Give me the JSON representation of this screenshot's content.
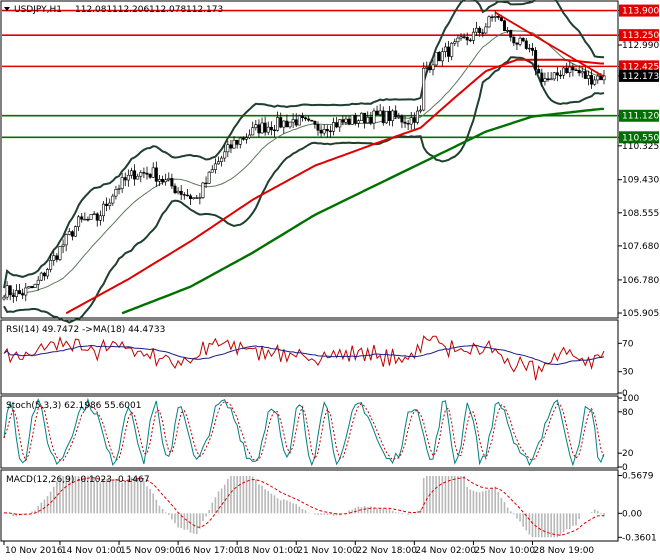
{
  "chart_data": {
    "type": "candlestick",
    "symbol": "USDJPY,H1",
    "ohlc_header": {
      "open": "112.081",
      "high": "112.206",
      "low": "112.078",
      "close": "112.173"
    },
    "main_panel": {
      "ylim": [
        105.8,
        114.1
      ],
      "y_ticks": [
        {
          "v": 113.9,
          "label": "113.900",
          "tag": "red"
        },
        {
          "v": 113.25,
          "label": "113.250",
          "tag": "red"
        },
        {
          "v": 112.99,
          "label": "112.990",
          "tag": ""
        },
        {
          "v": 112.425,
          "label": "112.425",
          "tag": "red"
        },
        {
          "v": 112.173,
          "label": "112.173",
          "tag": "black"
        },
        {
          "v": 111.12,
          "label": "111.120",
          "tag": "green"
        },
        {
          "v": 110.55,
          "label": "110.550",
          "tag": "green"
        },
        {
          "v": 110.325,
          "label": "110.325",
          "tag": ""
        },
        {
          "v": 109.43,
          "label": "109.430",
          "tag": ""
        },
        {
          "v": 108.555,
          "label": "108.555",
          "tag": ""
        },
        {
          "v": 107.68,
          "label": "107.680",
          "tag": ""
        },
        {
          "v": 106.78,
          "label": "106.780",
          "tag": ""
        },
        {
          "v": 105.905,
          "label": "105.905",
          "tag": ""
        }
      ],
      "horizontal_levels": [
        {
          "v": 113.9,
          "color": "#e00000"
        },
        {
          "v": 113.25,
          "color": "#e00000"
        },
        {
          "v": 112.425,
          "color": "#e00000"
        },
        {
          "v": 111.12,
          "color": "#007000"
        },
        {
          "v": 110.55,
          "color": "#007000"
        }
      ],
      "trendline": {
        "from_bar": 158,
        "from_v": 113.85,
        "to_bar": 193,
        "to_v": 112.15,
        "color": "#e00000"
      },
      "key_points": [
        [
          0,
          106.5
        ],
        [
          5,
          106.4
        ],
        [
          10,
          106.6
        ],
        [
          18,
          107.6
        ],
        [
          24,
          108.3
        ],
        [
          30,
          108.4
        ],
        [
          36,
          109.2
        ],
        [
          42,
          109.6
        ],
        [
          48,
          109.6
        ],
        [
          55,
          109.2
        ],
        [
          62,
          108.9
        ],
        [
          68,
          109.8
        ],
        [
          74,
          110.4
        ],
        [
          82,
          110.8
        ],
        [
          88,
          110.9
        ],
        [
          94,
          111.0
        ],
        [
          100,
          110.8
        ],
        [
          106,
          110.9
        ],
        [
          112,
          111.0
        ],
        [
          118,
          111.1
        ],
        [
          124,
          111.1
        ],
        [
          130,
          111.0
        ],
        [
          134,
          111.2
        ],
        [
          135,
          112.3
        ],
        [
          138,
          112.6
        ],
        [
          142,
          112.8
        ],
        [
          146,
          113.0
        ],
        [
          150,
          113.2
        ],
        [
          154,
          113.4
        ],
        [
          158,
          113.8
        ],
        [
          162,
          113.3
        ],
        [
          166,
          113.0
        ],
        [
          170,
          112.7
        ],
        [
          172,
          112.2
        ],
        [
          176,
          112.0
        ],
        [
          180,
          112.4
        ],
        [
          184,
          112.3
        ],
        [
          188,
          112.1
        ],
        [
          192,
          112.173
        ]
      ],
      "ma_red_points": [
        [
          20,
          105.9
        ],
        [
          40,
          106.8
        ],
        [
          60,
          107.8
        ],
        [
          80,
          108.9
        ],
        [
          100,
          109.8
        ],
        [
          120,
          110.4
        ],
        [
          134,
          110.8
        ],
        [
          145,
          111.6
        ],
        [
          155,
          112.3
        ],
        [
          165,
          112.6
        ],
        [
          180,
          112.6
        ],
        [
          192,
          112.5
        ]
      ],
      "ma_green_points": [
        [
          38,
          105.9
        ],
        [
          60,
          106.6
        ],
        [
          80,
          107.5
        ],
        [
          100,
          108.5
        ],
        [
          120,
          109.3
        ],
        [
          140,
          110.1
        ],
        [
          155,
          110.7
        ],
        [
          170,
          111.1
        ],
        [
          192,
          111.3
        ]
      ]
    },
    "rsi": {
      "label": "RSI(14) 49.7472 ->MA(18) 44.4733",
      "ylim": [
        0,
        100
      ],
      "ticks": [
        70,
        30,
        0
      ]
    },
    "stoch": {
      "label": "Stoch(5,3,3) 62.1986 55.6001",
      "ylim": [
        0,
        100
      ],
      "ticks": [
        100,
        80,
        20,
        0
      ]
    },
    "macd": {
      "label": "MACD(12,26,9) -0.1023 -0.1467",
      "ylim": [
        -0.4,
        0.62
      ],
      "ticks": [
        {
          "v": 0.5679,
          "label": "0.5679"
        },
        {
          "v": 0.0,
          "label": "0.00"
        },
        {
          "v": -0.3601,
          "label": "-0.3601"
        }
      ]
    },
    "x_ticks": [
      {
        "bar": 0,
        "label": "10 Nov 2016"
      },
      {
        "bar": 18,
        "label": "14 Nov 01:00"
      },
      {
        "bar": 37,
        "label": "15 Nov 09:00"
      },
      {
        "bar": 56,
        "label": "16 Nov 17:00"
      },
      {
        "bar": 75,
        "label": "18 Nov 01:00"
      },
      {
        "bar": 94,
        "label": "21 Nov 10:00"
      },
      {
        "bar": 113,
        "label": "22 Nov 18:00"
      },
      {
        "bar": 132,
        "label": "24 Nov 02:00"
      },
      {
        "bar": 151,
        "label": "25 Nov 10:00"
      },
      {
        "bar": 170,
        "label": "28 Nov 19:00"
      }
    ],
    "colors": {
      "candle": "#000000",
      "bb": "#1f3f2f",
      "ma_red": "#e00000",
      "ma_green": "#007000",
      "rsi": "#c00000",
      "rsi_ma": "#1a1a8a",
      "stoch_main": "#008080",
      "stoch_signal": "#c00000",
      "macd_hist": "#b8b8b8",
      "macd_signal": "#e00000"
    }
  }
}
